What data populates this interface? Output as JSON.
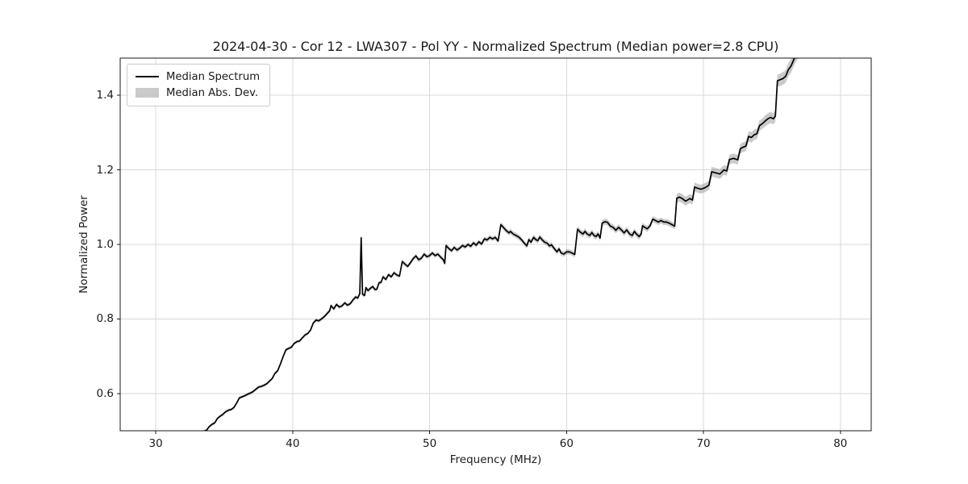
{
  "figure": {
    "title": "2024-04-30 - Cor 12 - LWA307 - Pol YY - Normalized Spectrum (Median power=2.8 CPU)"
  },
  "legend": {
    "items": [
      {
        "label": "Median Spectrum",
        "swatch": "line-swatch"
      },
      {
        "label": "Median Abs. Dev.",
        "swatch": "patch-swatch"
      }
    ]
  },
  "colors": {
    "line": "#000000",
    "band": "rgba(128,128,128,0.42)",
    "grid": "#d9d9d9",
    "frame": "#1a1a1a",
    "background": "#ffffff"
  },
  "chart_data": {
    "type": "line",
    "title": "2024-04-30 - Cor 12 - LWA307 - Pol YY - Normalized Spectrum (Median power=2.8 CPU)",
    "xlabel": "Frequency (MHz)",
    "ylabel": "Normalized Power",
    "xlim": [
      27.4,
      82.25
    ],
    "ylim": [
      0.5,
      1.5
    ],
    "xticks": [
      30,
      40,
      50,
      60,
      70,
      80
    ],
    "yticks": [
      0.6,
      0.8,
      1.0,
      1.2,
      1.4
    ],
    "grid": true,
    "legend_position": "upper left",
    "series": [
      {
        "name": "Median Spectrum",
        "style": "line",
        "color": "#000000"
      },
      {
        "name": "Median Abs. Dev.",
        "style": "band",
        "color": "gray"
      }
    ],
    "points_format": [
      "frequency_mhz",
      "normalized_power",
      "median_abs_dev"
    ],
    "points": [
      [
        33.15,
        0.49,
        0.004
      ],
      [
        33.5,
        0.499,
        0.004
      ],
      [
        33.7,
        0.501,
        0.004
      ],
      [
        33.9,
        0.511,
        0.004
      ],
      [
        34.1,
        0.517,
        0.004
      ],
      [
        34.3,
        0.521,
        0.004
      ],
      [
        34.5,
        0.533,
        0.004
      ],
      [
        34.7,
        0.539,
        0.004
      ],
      [
        34.9,
        0.544,
        0.004
      ],
      [
        35.1,
        0.551,
        0.004
      ],
      [
        35.3,
        0.555,
        0.004
      ],
      [
        35.5,
        0.557,
        0.004
      ],
      [
        35.7,
        0.562,
        0.004
      ],
      [
        35.9,
        0.574,
        0.004
      ],
      [
        36.1,
        0.588,
        0.004
      ],
      [
        36.3,
        0.591,
        0.004
      ],
      [
        36.5,
        0.594,
        0.004
      ],
      [
        36.7,
        0.598,
        0.004
      ],
      [
        36.9,
        0.601,
        0.004
      ],
      [
        37.1,
        0.605,
        0.004
      ],
      [
        37.3,
        0.611,
        0.004
      ],
      [
        37.5,
        0.617,
        0.004
      ],
      [
        37.7,
        0.619,
        0.004
      ],
      [
        37.9,
        0.622,
        0.004
      ],
      [
        38.1,
        0.626,
        0.004
      ],
      [
        38.3,
        0.633,
        0.004
      ],
      [
        38.5,
        0.64,
        0.004
      ],
      [
        38.7,
        0.654,
        0.004
      ],
      [
        38.9,
        0.661,
        0.004
      ],
      [
        39.1,
        0.679,
        0.004
      ],
      [
        39.3,
        0.699,
        0.004
      ],
      [
        39.5,
        0.717,
        0.004
      ],
      [
        39.7,
        0.721,
        0.004
      ],
      [
        39.9,
        0.724,
        0.004
      ],
      [
        40.1,
        0.734,
        0.004
      ],
      [
        40.3,
        0.739,
        0.004
      ],
      [
        40.5,
        0.741,
        0.004
      ],
      [
        40.7,
        0.749,
        0.004
      ],
      [
        40.9,
        0.757,
        0.004
      ],
      [
        41.1,
        0.761,
        0.004
      ],
      [
        41.3,
        0.77,
        0.004
      ],
      [
        41.5,
        0.789,
        0.004
      ],
      [
        41.7,
        0.797,
        0.005
      ],
      [
        41.9,
        0.795,
        0.005
      ],
      [
        42.1,
        0.8,
        0.005
      ],
      [
        42.3,
        0.806,
        0.005
      ],
      [
        42.5,
        0.814,
        0.005
      ],
      [
        42.7,
        0.822,
        0.005
      ],
      [
        42.8,
        0.836,
        0.005
      ],
      [
        43.0,
        0.827,
        0.005
      ],
      [
        43.2,
        0.839,
        0.005
      ],
      [
        43.4,
        0.832,
        0.005
      ],
      [
        43.6,
        0.835,
        0.005
      ],
      [
        43.8,
        0.843,
        0.005
      ],
      [
        44.0,
        0.837,
        0.005
      ],
      [
        44.2,
        0.841,
        0.005
      ],
      [
        44.4,
        0.851,
        0.005
      ],
      [
        44.6,
        0.859,
        0.005
      ],
      [
        44.75,
        0.856,
        0.005
      ],
      [
        44.9,
        0.868,
        0.006
      ],
      [
        45.0,
        1.018,
        0.012
      ],
      [
        45.1,
        0.866,
        0.006
      ],
      [
        45.25,
        0.863,
        0.005
      ],
      [
        45.35,
        0.884,
        0.005
      ],
      [
        45.5,
        0.876,
        0.005
      ],
      [
        45.7,
        0.883,
        0.005
      ],
      [
        45.85,
        0.887,
        0.005
      ],
      [
        46.0,
        0.879,
        0.005
      ],
      [
        46.15,
        0.88,
        0.005
      ],
      [
        46.3,
        0.897,
        0.005
      ],
      [
        46.45,
        0.898,
        0.005
      ],
      [
        46.6,
        0.913,
        0.005
      ],
      [
        46.8,
        0.906,
        0.005
      ],
      [
        47.0,
        0.919,
        0.005
      ],
      [
        47.2,
        0.913,
        0.005
      ],
      [
        47.4,
        0.924,
        0.005
      ],
      [
        47.6,
        0.918,
        0.005
      ],
      [
        47.8,
        0.915,
        0.005
      ],
      [
        48.0,
        0.954,
        0.006
      ],
      [
        48.2,
        0.947,
        0.006
      ],
      [
        48.4,
        0.941,
        0.006
      ],
      [
        48.6,
        0.951,
        0.006
      ],
      [
        48.8,
        0.962,
        0.006
      ],
      [
        49.0,
        0.969,
        0.006
      ],
      [
        49.2,
        0.959,
        0.006
      ],
      [
        49.4,
        0.963,
        0.006
      ],
      [
        49.6,
        0.974,
        0.006
      ],
      [
        49.8,
        0.967,
        0.006
      ],
      [
        50.0,
        0.97,
        0.006
      ],
      [
        50.2,
        0.977,
        0.006
      ],
      [
        50.4,
        0.97,
        0.006
      ],
      [
        50.6,
        0.974,
        0.006
      ],
      [
        50.8,
        0.966,
        0.006
      ],
      [
        51.0,
        0.959,
        0.006
      ],
      [
        51.1,
        0.949,
        0.006
      ],
      [
        51.2,
        0.997,
        0.006
      ],
      [
        51.4,
        0.989,
        0.006
      ],
      [
        51.6,
        0.983,
        0.006
      ],
      [
        51.8,
        0.992,
        0.006
      ],
      [
        52.0,
        0.985,
        0.006
      ],
      [
        52.2,
        0.99,
        0.006
      ],
      [
        52.4,
        0.997,
        0.006
      ],
      [
        52.6,
        0.993,
        0.006
      ],
      [
        52.8,
        1.0,
        0.006
      ],
      [
        53.0,
        0.995,
        0.006
      ],
      [
        53.2,
        1.004,
        0.006
      ],
      [
        53.4,
        0.998,
        0.006
      ],
      [
        53.6,
        1.007,
        0.006
      ],
      [
        53.8,
        1.001,
        0.006
      ],
      [
        54.0,
        1.015,
        0.006
      ],
      [
        54.2,
        1.012,
        0.006
      ],
      [
        54.4,
        1.019,
        0.006
      ],
      [
        54.6,
        1.015,
        0.006
      ],
      [
        54.8,
        1.019,
        0.006
      ],
      [
        55.0,
        1.009,
        0.006
      ],
      [
        55.2,
        1.053,
        0.007
      ],
      [
        55.4,
        1.045,
        0.007
      ],
      [
        55.6,
        1.037,
        0.007
      ],
      [
        55.8,
        1.031,
        0.007
      ],
      [
        55.9,
        1.035,
        0.007
      ],
      [
        56.1,
        1.028,
        0.007
      ],
      [
        56.3,
        1.024,
        0.007
      ],
      [
        56.5,
        1.02,
        0.007
      ],
      [
        56.7,
        1.013,
        0.007
      ],
      [
        56.9,
        1.004,
        0.007
      ],
      [
        57.1,
        0.996,
        0.007
      ],
      [
        57.25,
        1.013,
        0.007
      ],
      [
        57.4,
        1.006,
        0.007
      ],
      [
        57.6,
        1.019,
        0.007
      ],
      [
        57.75,
        1.013,
        0.007
      ],
      [
        57.9,
        1.01,
        0.007
      ],
      [
        58.05,
        1.02,
        0.007
      ],
      [
        58.2,
        1.013,
        0.007
      ],
      [
        58.4,
        1.006,
        0.007
      ],
      [
        58.6,
        1.003,
        0.007
      ],
      [
        58.75,
        0.996,
        0.007
      ],
      [
        58.9,
        0.999,
        0.007
      ],
      [
        59.1,
        0.989,
        0.007
      ],
      [
        59.3,
        0.98,
        0.007
      ],
      [
        59.45,
        0.988,
        0.007
      ],
      [
        59.6,
        0.977,
        0.007
      ],
      [
        59.8,
        0.974,
        0.007
      ],
      [
        60.0,
        0.98,
        0.007
      ],
      [
        60.2,
        0.98,
        0.007
      ],
      [
        60.4,
        0.977,
        0.007
      ],
      [
        60.6,
        0.973,
        0.007
      ],
      [
        60.8,
        1.041,
        0.008
      ],
      [
        61.0,
        1.033,
        0.008
      ],
      [
        61.2,
        1.028,
        0.008
      ],
      [
        61.35,
        1.035,
        0.008
      ],
      [
        61.5,
        1.028,
        0.008
      ],
      [
        61.7,
        1.024,
        0.008
      ],
      [
        61.85,
        1.032,
        0.008
      ],
      [
        62.0,
        1.024,
        0.008
      ],
      [
        62.15,
        1.021,
        0.008
      ],
      [
        62.3,
        1.028,
        0.008
      ],
      [
        62.45,
        1.017,
        0.008
      ],
      [
        62.6,
        1.057,
        0.008
      ],
      [
        62.8,
        1.061,
        0.008
      ],
      [
        63.0,
        1.059,
        0.008
      ],
      [
        63.2,
        1.049,
        0.008
      ],
      [
        63.4,
        1.046,
        0.008
      ],
      [
        63.6,
        1.038,
        0.008
      ],
      [
        63.8,
        1.046,
        0.008
      ],
      [
        64.0,
        1.039,
        0.008
      ],
      [
        64.2,
        1.031,
        0.008
      ],
      [
        64.4,
        1.039,
        0.008
      ],
      [
        64.6,
        1.028,
        0.008
      ],
      [
        64.8,
        1.024,
        0.008
      ],
      [
        64.95,
        1.035,
        0.008
      ],
      [
        65.1,
        1.028,
        0.008
      ],
      [
        65.3,
        1.021,
        0.008
      ],
      [
        65.45,
        1.028,
        0.008
      ],
      [
        65.55,
        1.05,
        0.008
      ],
      [
        65.7,
        1.046,
        0.008
      ],
      [
        65.9,
        1.042,
        0.008
      ],
      [
        66.1,
        1.05,
        0.008
      ],
      [
        66.3,
        1.068,
        0.008
      ],
      [
        66.5,
        1.064,
        0.008
      ],
      [
        66.7,
        1.06,
        0.008
      ],
      [
        66.9,
        1.064,
        0.008
      ],
      [
        67.1,
        1.06,
        0.008
      ],
      [
        67.3,
        1.06,
        0.008
      ],
      [
        67.5,
        1.057,
        0.008
      ],
      [
        67.7,
        1.053,
        0.008
      ],
      [
        67.9,
        1.049,
        0.008
      ],
      [
        68.05,
        1.124,
        0.012
      ],
      [
        68.25,
        1.127,
        0.012
      ],
      [
        68.45,
        1.123,
        0.012
      ],
      [
        68.7,
        1.116,
        0.012
      ],
      [
        69.0,
        1.123,
        0.012
      ],
      [
        69.2,
        1.119,
        0.012
      ],
      [
        69.35,
        1.154,
        0.012
      ],
      [
        69.55,
        1.151,
        0.012
      ],
      [
        69.8,
        1.148,
        0.012
      ],
      [
        70.1,
        1.152,
        0.012
      ],
      [
        70.4,
        1.159,
        0.012
      ],
      [
        70.6,
        1.195,
        0.013
      ],
      [
        70.9,
        1.192,
        0.013
      ],
      [
        71.2,
        1.189,
        0.013
      ],
      [
        71.5,
        1.2,
        0.013
      ],
      [
        71.7,
        1.197,
        0.013
      ],
      [
        71.9,
        1.228,
        0.013
      ],
      [
        72.2,
        1.231,
        0.013
      ],
      [
        72.5,
        1.227,
        0.013
      ],
      [
        72.7,
        1.257,
        0.013
      ],
      [
        72.9,
        1.261,
        0.013
      ],
      [
        73.1,
        1.264,
        0.013
      ],
      [
        73.3,
        1.29,
        0.014
      ],
      [
        73.5,
        1.287,
        0.014
      ],
      [
        73.7,
        1.294,
        0.014
      ],
      [
        73.9,
        1.297,
        0.014
      ],
      [
        74.1,
        1.319,
        0.014
      ],
      [
        74.3,
        1.324,
        0.014
      ],
      [
        74.5,
        1.331,
        0.015
      ],
      [
        74.7,
        1.337,
        0.015
      ],
      [
        74.9,
        1.341,
        0.015
      ],
      [
        75.1,
        1.337,
        0.015
      ],
      [
        75.25,
        1.344,
        0.015
      ],
      [
        75.4,
        1.439,
        0.016
      ],
      [
        75.6,
        1.442,
        0.016
      ],
      [
        75.8,
        1.445,
        0.017
      ],
      [
        76.0,
        1.451,
        0.017
      ],
      [
        76.2,
        1.469,
        0.018
      ],
      [
        76.4,
        1.479,
        0.018
      ],
      [
        76.6,
        1.496,
        0.018
      ],
      [
        76.8,
        1.512,
        0.019
      ],
      [
        77.0,
        1.524,
        0.021
      ],
      [
        77.2,
        1.536,
        0.024
      ]
    ]
  }
}
